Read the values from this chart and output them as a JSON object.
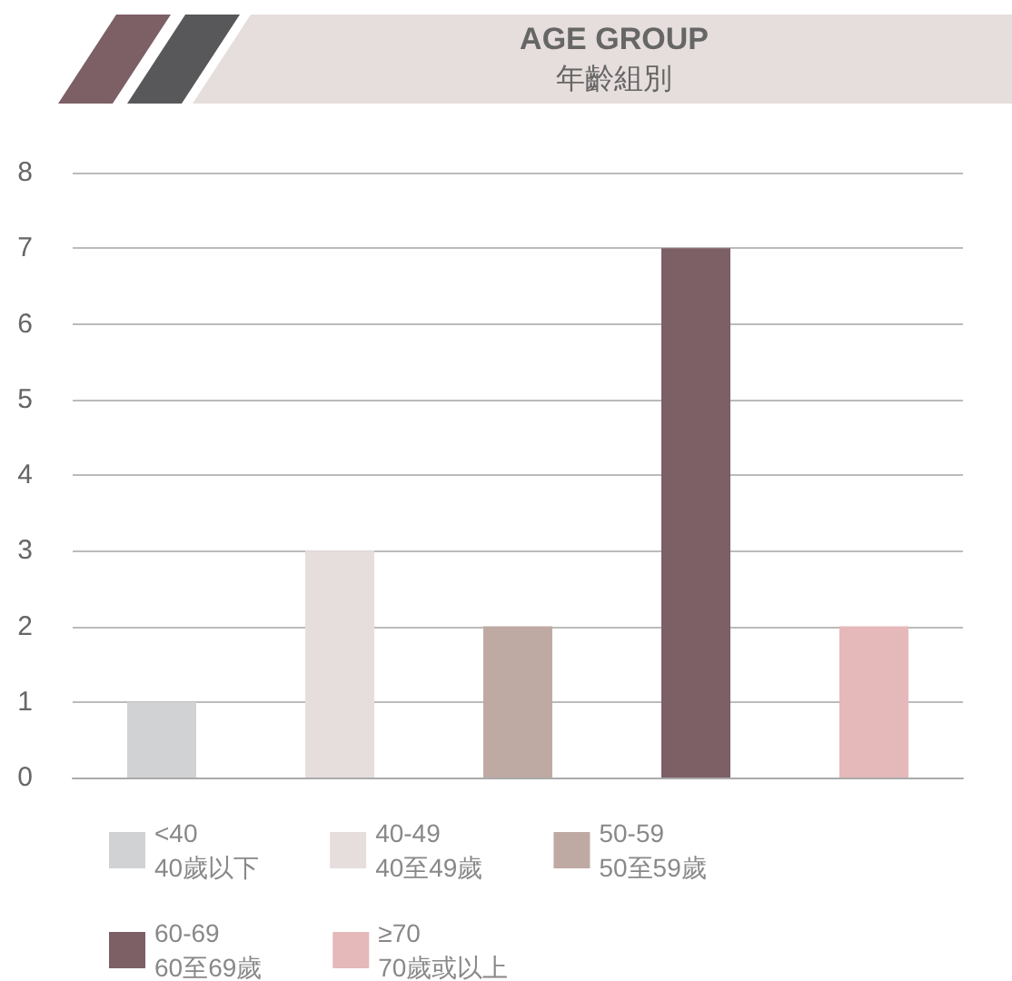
{
  "chart_data": {
    "type": "bar",
    "title": "AGE GROUP",
    "subtitle": "年齡組別",
    "categories": [
      null,
      null,
      null,
      null,
      null
    ],
    "series": [
      {
        "name": "<40\n40歲以下",
        "color": "#d1d2d4",
        "values": [
          1,
          null,
          null,
          null,
          null
        ]
      },
      {
        "name": "40-49\n40至49歲",
        "color": "#e6dedc",
        "values": [
          null,
          3,
          null,
          null,
          null
        ]
      },
      {
        "name": "50-59\n50至59歲",
        "color": "#bfaaa3",
        "values": [
          null,
          null,
          2,
          null,
          null
        ]
      },
      {
        "name": "60-69\n60至69歲",
        "color": "#7d5f66",
        "values": [
          null,
          null,
          null,
          7,
          null
        ]
      },
      {
        "name": "≥70\n70歲或以上",
        "color": "#e5b8ba",
        "values": [
          null,
          null,
          null,
          null,
          2
        ]
      }
    ],
    "ylim": [
      0,
      8
    ],
    "yticks": [
      0,
      1,
      2,
      3,
      4,
      5,
      6,
      7,
      8
    ],
    "grid": "y",
    "legend": "bottom"
  }
}
